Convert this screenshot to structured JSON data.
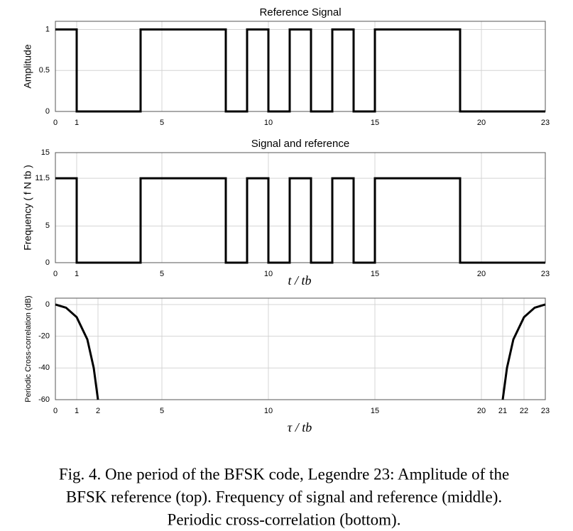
{
  "chart_data": [
    {
      "type": "line",
      "title": "Reference Signal",
      "ylabel": "Amplitude",
      "x": [
        0,
        1,
        1,
        4,
        4,
        8,
        8,
        9,
        9,
        10,
        10,
        11,
        11,
        12,
        12,
        13,
        13,
        14,
        14,
        15,
        15,
        19,
        19,
        23
      ],
      "series": [
        {
          "color": "#000000",
          "values": [
            1,
            1,
            0,
            0,
            1,
            1,
            0,
            0,
            1,
            1,
            0,
            0,
            1,
            1,
            0,
            0,
            1,
            1,
            0,
            0,
            1,
            1,
            0,
            0
          ]
        }
      ],
      "xlim": [
        0,
        23
      ],
      "xticks": [
        0,
        1,
        5,
        10,
        15,
        20,
        23
      ],
      "ylim": [
        0,
        1.1
      ],
      "yticks": [
        0,
        0.5,
        1
      ],
      "grid": true
    },
    {
      "type": "line",
      "title": "Signal and reference",
      "ylabel": "Frequency ( f N tb )",
      "xlabel": "t / tb",
      "x": [
        0,
        1,
        1,
        4,
        4,
        8,
        8,
        9,
        9,
        10,
        10,
        11,
        11,
        12,
        12,
        13,
        13,
        14,
        14,
        15,
        15,
        19,
        19,
        23
      ],
      "series": [
        {
          "color": "#000000",
          "values": [
            11.5,
            11.5,
            0,
            0,
            11.5,
            11.5,
            0,
            0,
            11.5,
            11.5,
            0,
            0,
            11.5,
            11.5,
            0,
            0,
            11.5,
            11.5,
            0,
            0,
            11.5,
            11.5,
            0,
            0
          ]
        }
      ],
      "xlim": [
        0,
        23
      ],
      "xticks": [
        0,
        1,
        5,
        10,
        15,
        20,
        23
      ],
      "ylim": [
        0,
        15
      ],
      "yticks": [
        0,
        5,
        11.5,
        15
      ],
      "grid": true
    },
    {
      "type": "line",
      "ylabel": "Periodic Cross-correlation (dB)",
      "xlabel": "τ / tb",
      "x": [
        0,
        0.5,
        1,
        1.5,
        1.8,
        2,
        11.5,
        21,
        21.2,
        21.5,
        22,
        22.5,
        23
      ],
      "series": [
        {
          "color": "#000000",
          "values": [
            0,
            -2,
            -8,
            -22,
            -40,
            -60,
            null,
            -60,
            -40,
            -22,
            -8,
            -2,
            0
          ]
        }
      ],
      "xlim": [
        0,
        23
      ],
      "xticks": [
        0,
        1,
        2,
        5,
        10,
        15,
        20,
        21,
        22,
        23
      ],
      "ylim": [
        -60,
        4
      ],
      "yticks": [
        0,
        -20,
        -40,
        -60
      ],
      "grid": true
    }
  ],
  "caption": [
    "Fig. 4.    One period of the BFSK code, Legendre 23: Amplitude of the",
    "BFSK reference (top). Frequency of signal and reference (middle).",
    "Periodic cross-correlation (bottom)."
  ]
}
